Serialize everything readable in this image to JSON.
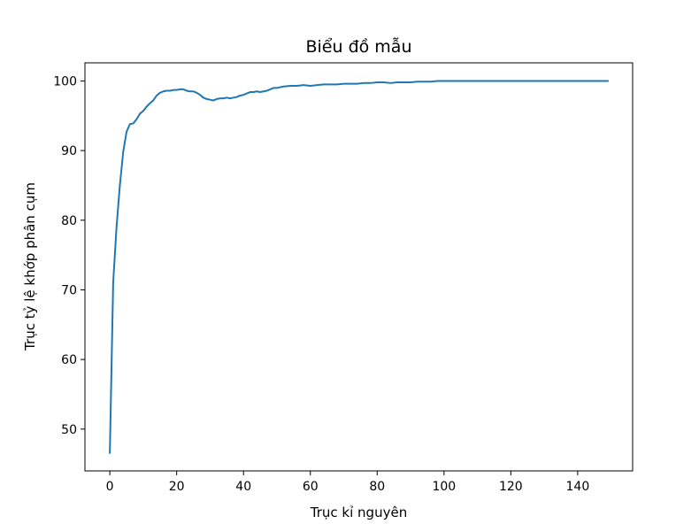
{
  "chart_data": {
    "type": "line",
    "title": "Biểu đồ mẫu",
    "xlabel": "Trục kỉ nguyên",
    "ylabel": "Trục tỷ lệ khớp phân cụm",
    "xlim": [
      -7.45,
      156.45
    ],
    "ylim": [
      44.0,
      102.6
    ],
    "xticks": [
      0,
      20,
      40,
      60,
      80,
      100,
      120,
      140
    ],
    "yticks": [
      50,
      60,
      70,
      80,
      90,
      100
    ],
    "grid": false,
    "line_color": "#1f77b4",
    "series": [
      {
        "x": [
          0,
          1,
          2,
          3,
          4,
          5,
          6,
          7,
          8,
          9,
          10,
          11,
          12,
          13,
          14,
          15,
          16,
          17,
          18,
          19,
          20,
          21,
          22,
          23,
          24,
          25,
          26,
          27,
          28,
          29,
          30,
          31,
          32,
          33,
          34,
          35,
          36,
          37,
          38,
          39,
          40,
          41,
          42,
          43,
          44,
          45,
          46,
          47,
          48,
          49,
          50,
          52,
          54,
          56,
          58,
          60,
          62,
          64,
          66,
          68,
          70,
          72,
          74,
          76,
          78,
          80,
          82,
          84,
          86,
          88,
          90,
          92,
          94,
          96,
          98,
          100,
          105,
          110,
          120,
          130,
          140,
          149
        ],
        "y": [
          46.6,
          71.0,
          79.0,
          85.0,
          89.8,
          92.7,
          93.8,
          93.9,
          94.5,
          95.3,
          95.7,
          96.3,
          96.8,
          97.2,
          97.9,
          98.3,
          98.5,
          98.6,
          98.6,
          98.7,
          98.7,
          98.8,
          98.8,
          98.6,
          98.5,
          98.5,
          98.3,
          98.0,
          97.6,
          97.4,
          97.3,
          97.2,
          97.4,
          97.5,
          97.5,
          97.6,
          97.5,
          97.6,
          97.7,
          97.9,
          98.0,
          98.2,
          98.4,
          98.4,
          98.5,
          98.4,
          98.5,
          98.6,
          98.8,
          99.0,
          99.0,
          99.2,
          99.3,
          99.3,
          99.4,
          99.3,
          99.4,
          99.5,
          99.5,
          99.5,
          99.6,
          99.6,
          99.6,
          99.7,
          99.7,
          99.8,
          99.8,
          99.7,
          99.8,
          99.8,
          99.8,
          99.9,
          99.9,
          99.9,
          100.0,
          100.0,
          100.0,
          100.0,
          100.0,
          100.0,
          100.0,
          100.0
        ]
      }
    ]
  }
}
